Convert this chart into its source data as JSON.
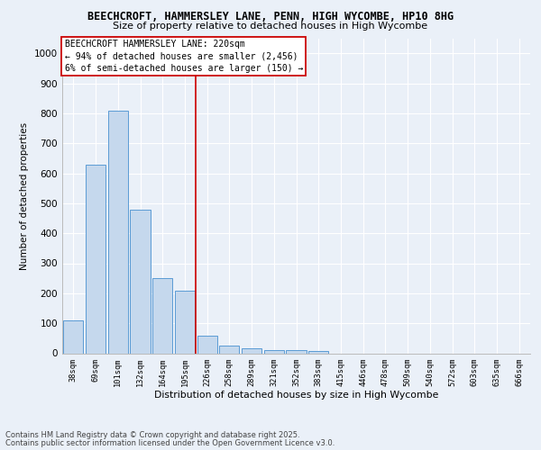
{
  "title_line1": "BEECHCROFT, HAMMERSLEY LANE, PENN, HIGH WYCOMBE, HP10 8HG",
  "title_line2": "Size of property relative to detached houses in High Wycombe",
  "xlabel": "Distribution of detached houses by size in High Wycombe",
  "ylabel": "Number of detached properties",
  "categories": [
    "38sqm",
    "69sqm",
    "101sqm",
    "132sqm",
    "164sqm",
    "195sqm",
    "226sqm",
    "258sqm",
    "289sqm",
    "321sqm",
    "352sqm",
    "383sqm",
    "415sqm",
    "446sqm",
    "478sqm",
    "509sqm",
    "540sqm",
    "572sqm",
    "603sqm",
    "635sqm",
    "666sqm"
  ],
  "values": [
    110,
    630,
    810,
    480,
    250,
    210,
    60,
    25,
    18,
    12,
    10,
    8,
    0,
    0,
    0,
    0,
    0,
    0,
    0,
    0,
    0
  ],
  "bar_color": "#c5d8ed",
  "bar_edge_color": "#5b9bd5",
  "vline_x": 5.5,
  "annotation_text": "BEECHCROFT HAMMERSLEY LANE: 220sqm\n← 94% of detached houses are smaller (2,456)\n6% of semi-detached houses are larger (150) →",
  "annotation_box_color": "#ffffff",
  "annotation_box_edge": "#cc0000",
  "vline_color": "#cc0000",
  "ylim": [
    0,
    1050
  ],
  "yticks": [
    0,
    100,
    200,
    300,
    400,
    500,
    600,
    700,
    800,
    900,
    1000
  ],
  "footer_line1": "Contains HM Land Registry data © Crown copyright and database right 2025.",
  "footer_line2": "Contains public sector information licensed under the Open Government Licence v3.0.",
  "bg_color": "#eaf0f8",
  "plot_bg_color": "#eaf0f8"
}
